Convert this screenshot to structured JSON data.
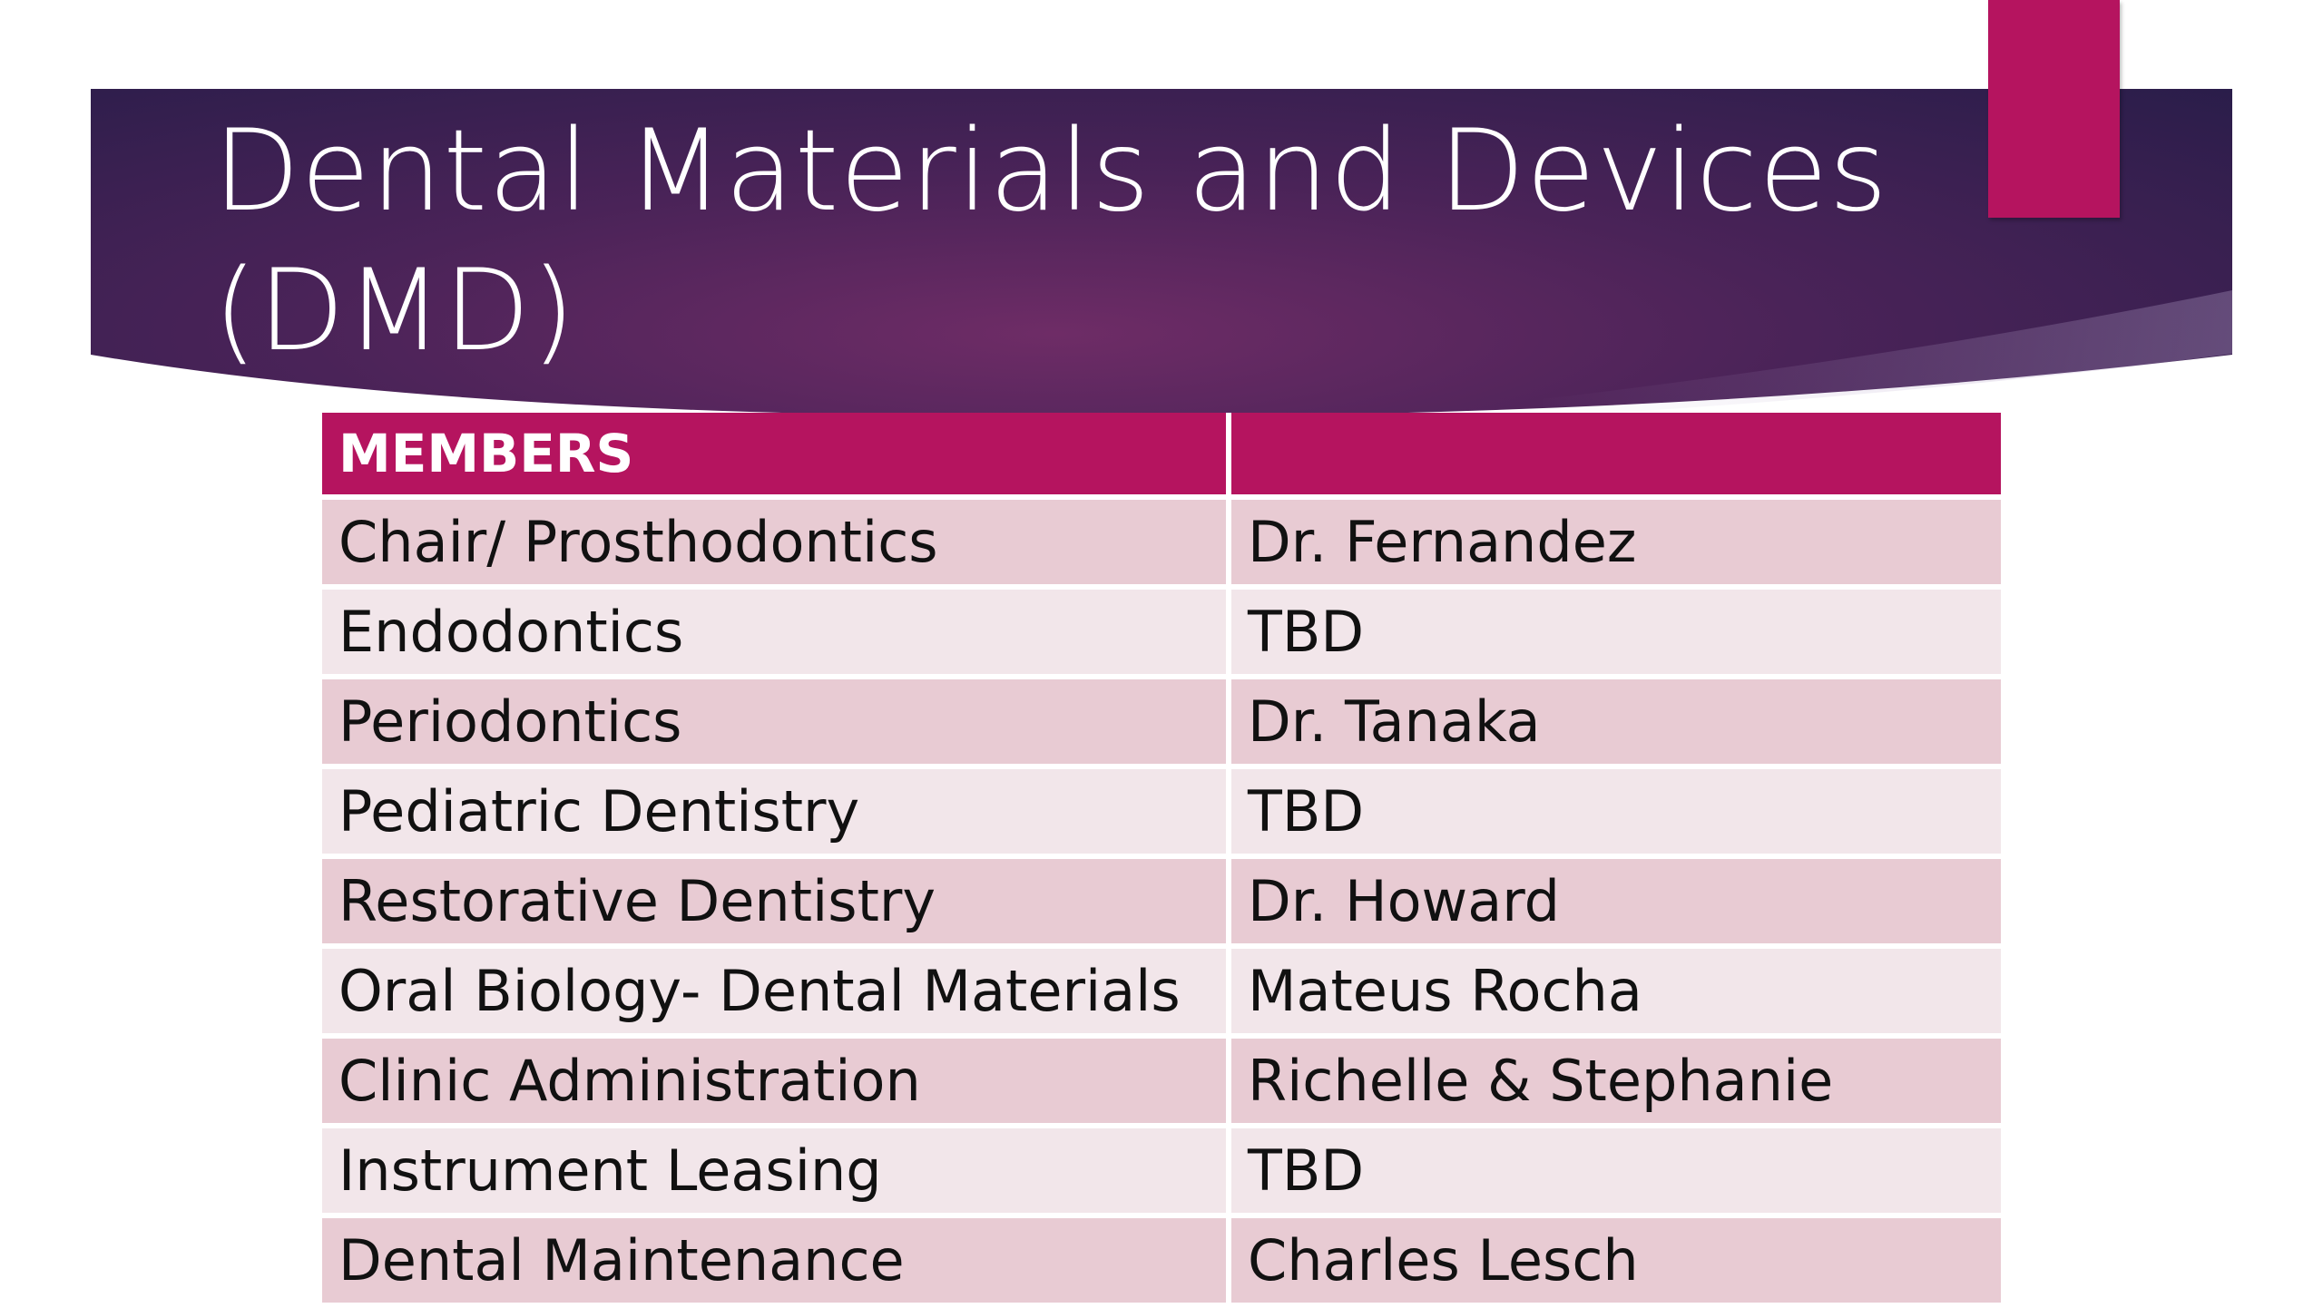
{
  "slide": {
    "title_line1": "Dental Materials and Devices",
    "title_line2": "(DMD)",
    "colors": {
      "banner": "#3b2150",
      "accent": "#b5145f",
      "row_dark": "#e8cbd3",
      "row_light": "#f2e6ea"
    }
  },
  "table": {
    "header": [
      "MEMBERS",
      ""
    ],
    "rows": [
      [
        "Chair/ Prosthodontics",
        "Dr. Fernandez"
      ],
      [
        "Endodontics",
        "TBD"
      ],
      [
        "Periodontics",
        "Dr. Tanaka"
      ],
      [
        "Pediatric Dentistry",
        "TBD"
      ],
      [
        "Restorative Dentistry",
        "Dr. Howard"
      ],
      [
        "Oral Biology- Dental Materials",
        "Mateus Rocha"
      ],
      [
        "Clinic Administration",
        "Richelle & Stephanie"
      ],
      [
        "Instrument Leasing",
        "TBD"
      ],
      [
        "Dental Maintenance",
        "Charles Lesch"
      ]
    ]
  }
}
